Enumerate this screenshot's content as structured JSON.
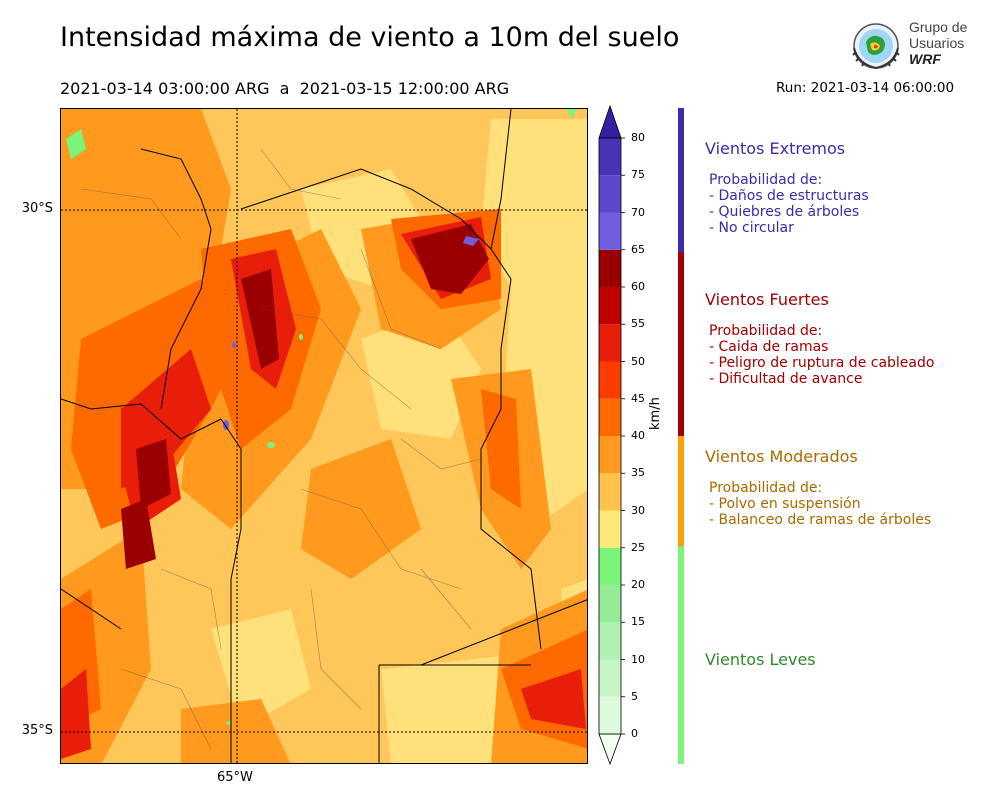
{
  "header": {
    "title": "Intensidad máxima de viento a 10m del suelo",
    "period": "2021-03-14 03:00:00 ARG  a  2021-03-15 12:00:00 ARG",
    "run": "Run: 2021-03-14 06:00:00"
  },
  "logo": {
    "line1": "Grupo de",
    "line2": "Usuarios",
    "line3": "WRF"
  },
  "map": {
    "lat_labels": [
      "30°S",
      "35°S"
    ],
    "lon_labels": [
      "65°W"
    ],
    "colors": {
      "background": "#ffc65a",
      "low": "#ffe07a",
      "orange": "#ff9a1e",
      "dark_orange": "#ff6a00",
      "red": "#e81e0a",
      "dark_red": "#c00000",
      "darkest_red": "#9a0000",
      "purple": "#6f5ee0",
      "green": "#7af57a"
    }
  },
  "colorbar": {
    "unit": "km/h",
    "ticks": [
      "0",
      "5",
      "10",
      "15",
      "20",
      "25",
      "30",
      "35",
      "40",
      "45",
      "50",
      "55",
      "60",
      "65",
      "70",
      "75",
      "80"
    ],
    "colors": [
      "#f0fff0",
      "#dcfadc",
      "#c8f5c8",
      "#b0f0b0",
      "#96eb96",
      "#7af57a",
      "#ffe87a",
      "#ffc24a",
      "#ff9a1e",
      "#ff6a00",
      "#ff3c00",
      "#e81e0a",
      "#c00000",
      "#9a0000",
      "#6f5ee0",
      "#5b48cc",
      "#4634b6",
      "#3420a0"
    ]
  },
  "categories": [
    {
      "title": "Vientos Extremos",
      "color": "#3d2aa8",
      "strip": "#3d2aa8",
      "desc": [
        "Probabilidad de:",
        "- Daños de estructuras",
        "- Quiebres de árboles",
        "- No circular"
      ]
    },
    {
      "title": "Vientos Fuertes",
      "color": "#a00000",
      "strip": "#a00000",
      "desc": [
        "Probabilidad de:",
        "- Caida de ramas",
        "- Peligro de ruptura de cableado",
        "- Dificultad de avance"
      ]
    },
    {
      "title": "Vientos Moderados",
      "color": "#a86a00",
      "strip": "#ff9f00",
      "desc": [
        "Probabilidad de:",
        "- Polvo en suspensión",
        "- Balanceo de ramas de árboles"
      ]
    },
    {
      "title": "Vientos Leves",
      "color": "#2e8a2e",
      "strip": "#7af57a",
      "desc": []
    }
  ]
}
